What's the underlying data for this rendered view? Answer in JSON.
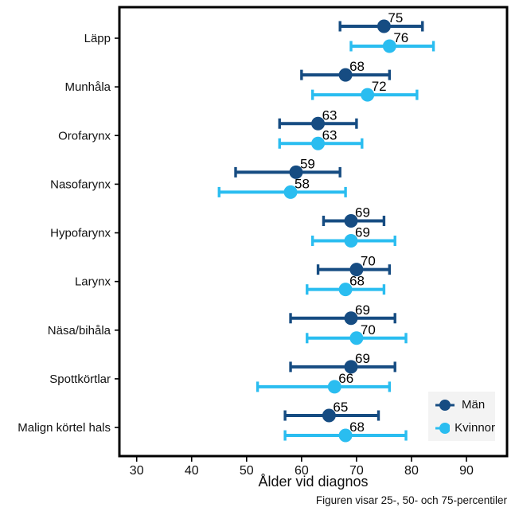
{
  "chart_data": {
    "type": "errorbar",
    "xlabel": "Ålder vid diagnos",
    "footnote": "Figuren visar 25-, 50- och 75-percentiler",
    "categories": [
      "Läpp",
      "Munhåla",
      "Orofarynx",
      "Nasofarynx",
      "Hypofarynx",
      "Larynx",
      "Näsa/bihåla",
      "Spottkörtlar",
      "Malign körtel hals"
    ],
    "xticks": [
      30,
      40,
      50,
      60,
      70,
      80,
      90
    ],
    "xlim": [
      26.8,
      97.3
    ],
    "grid": false,
    "legend_position": "lower right",
    "series": [
      {
        "name": "Män",
        "color": "#164c82",
        "points": [
          {
            "p25": 67,
            "p50": 75,
            "p75": 82
          },
          {
            "p25": 60,
            "p50": 68,
            "p75": 76
          },
          {
            "p25": 56,
            "p50": 63,
            "p75": 70
          },
          {
            "p25": 48,
            "p50": 59,
            "p75": 67
          },
          {
            "p25": 64,
            "p50": 69,
            "p75": 75
          },
          {
            "p25": 63,
            "p50": 70,
            "p75": 76
          },
          {
            "p25": 58,
            "p50": 69,
            "p75": 77
          },
          {
            "p25": 58,
            "p50": 69,
            "p75": 77
          },
          {
            "p25": 57,
            "p50": 65,
            "p75": 74
          }
        ]
      },
      {
        "name": "Kvinnor",
        "color": "#2abdf0",
        "points": [
          {
            "p25": 69,
            "p50": 76,
            "p75": 84
          },
          {
            "p25": 62,
            "p50": 72,
            "p75": 81
          },
          {
            "p25": 56,
            "p50": 63,
            "p75": 71
          },
          {
            "p25": 45,
            "p50": 58,
            "p75": 68
          },
          {
            "p25": 62,
            "p50": 69,
            "p75": 77
          },
          {
            "p25": 61,
            "p50": 68,
            "p75": 75
          },
          {
            "p25": 61,
            "p50": 70,
            "p75": 79
          },
          {
            "p25": 52,
            "p50": 66,
            "p75": 76
          },
          {
            "p25": 57,
            "p50": 68,
            "p75": 79
          }
        ]
      }
    ]
  }
}
